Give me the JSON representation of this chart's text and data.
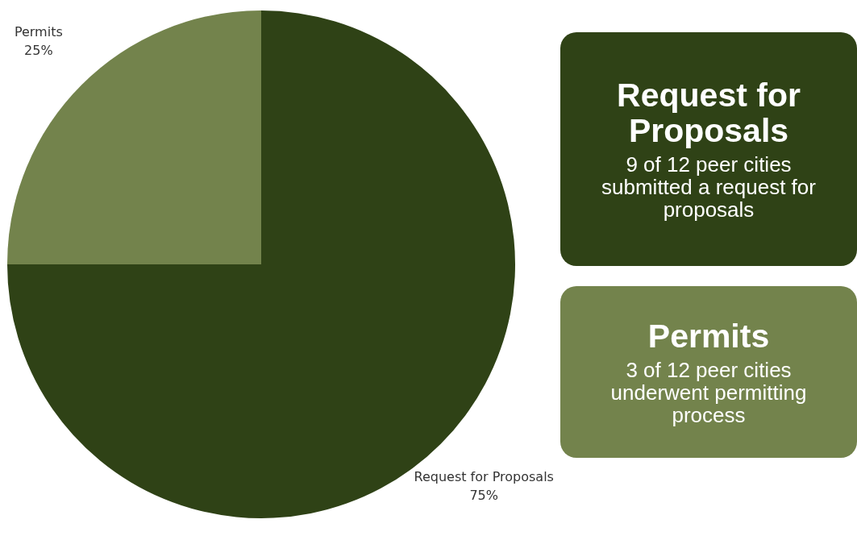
{
  "chart_data": {
    "type": "pie",
    "categories": [
      "Request for Proposals",
      "Permits"
    ],
    "values": [
      75,
      25
    ],
    "colors": [
      "#2f4216",
      "#73834c"
    ],
    "value_labels": [
      "75%",
      "25%"
    ],
    "legend": false,
    "annotations": [
      "9 of 12 peer cities submitted a request for proposals",
      "3 of 12 peer cities underwent permitting process"
    ]
  }
}
